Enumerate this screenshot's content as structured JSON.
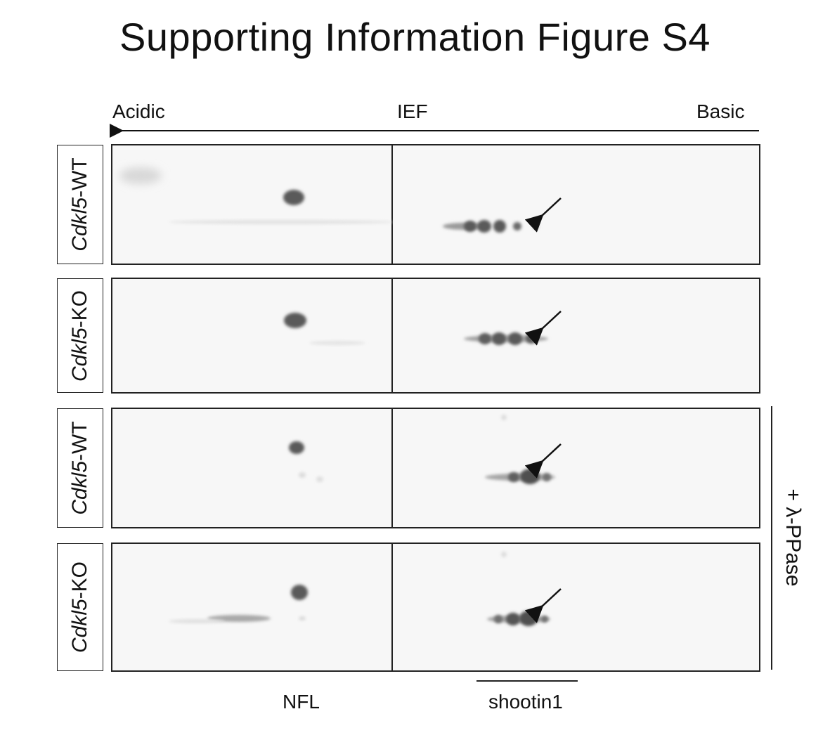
{
  "title": "Supporting Information Figure S4",
  "axis": {
    "left_label": "Acidic",
    "center_label": "IEF",
    "right_label": "Basic"
  },
  "rows": [
    {
      "gene": "Cdkl5",
      "genotype": "-WT"
    },
    {
      "gene": "Cdkl5",
      "genotype": "-KO"
    },
    {
      "gene": "Cdkl5",
      "genotype": "-WT"
    },
    {
      "gene": "Cdkl5",
      "genotype": "-KO"
    }
  ],
  "treatment_label": "+ λ-PPase",
  "bottom_labels": {
    "nfl": "NFL",
    "shootin": "shootin1"
  },
  "colors": {
    "spot": "#5a5a5a",
    "frame": "#222222",
    "panel_bg": "#f7f7f7"
  }
}
